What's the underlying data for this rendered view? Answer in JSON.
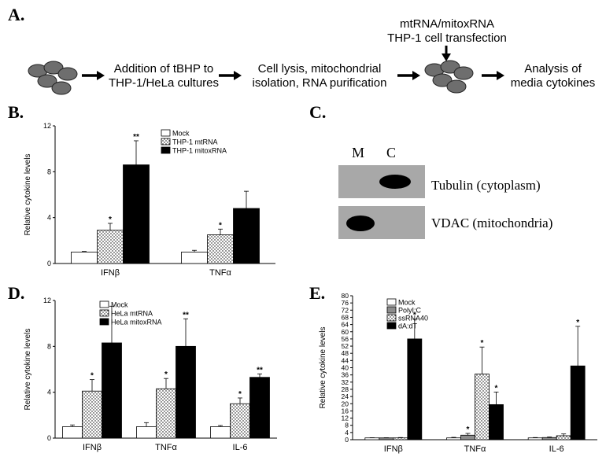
{
  "panels": {
    "a": "A.",
    "b": "B.",
    "c": "C.",
    "d": "D.",
    "e": "E."
  },
  "flow": {
    "step1_l1": "Addition of tBHP to",
    "step1_l2": "THP-1/HeLa cultures",
    "step2_l1": "Cell lysis, mitochondrial",
    "step2_l2": "isolation, RNA purification",
    "step3_l1": "mtRNA/mitoxRNA",
    "step3_l2": "THP-1 cell transfection",
    "step4_l1": "Analysis of",
    "step4_l2": "media cytokines",
    "colors": {
      "cell_fill": "#6e6e6e",
      "cell_stroke": "#222222"
    }
  },
  "blot": {
    "lane_m": "M",
    "lane_c": "C",
    "band1": "Tubulin (cytoplasm)",
    "band2": "VDAC (mitochondria)"
  },
  "chart_data": [
    {
      "id": "B",
      "type": "bar",
      "ylabel": "Relative cytokine levels",
      "ylim": [
        0,
        12
      ],
      "yticks": [
        0,
        4,
        8,
        12
      ],
      "categories": [
        "IFNβ",
        "TNFα"
      ],
      "legend_position": "top-center",
      "series": [
        {
          "name": "Mock",
          "pattern": "white",
          "values": [
            1.0,
            1.0
          ],
          "errors": [
            0.05,
            0.15
          ],
          "sig": [
            "",
            ""
          ]
        },
        {
          "name": "THP-1 mtRNA",
          "pattern": "dots",
          "values": [
            2.9,
            2.5
          ],
          "errors": [
            0.6,
            0.5
          ],
          "sig": [
            "*",
            "*"
          ]
        },
        {
          "name": "THP-1 mitoxRNA",
          "pattern": "black",
          "values": [
            8.6,
            4.8
          ],
          "errors": [
            2.1,
            1.5
          ],
          "sig": [
            "**",
            ""
          ]
        }
      ]
    },
    {
      "id": "D",
      "type": "bar",
      "ylabel": "Relative cytokine levels",
      "ylim": [
        0,
        12
      ],
      "yticks": [
        0,
        4,
        8,
        12
      ],
      "categories": [
        "IFNβ",
        "TNFα",
        "IL-6"
      ],
      "legend_position": "top-left",
      "series": [
        {
          "name": "Mock",
          "pattern": "white",
          "values": [
            1.0,
            1.0,
            1.0
          ],
          "errors": [
            0.15,
            0.35,
            0.1
          ],
          "sig": [
            "",
            "",
            ""
          ]
        },
        {
          "name": "HeLa mtRNA",
          "pattern": "dots",
          "values": [
            4.1,
            4.3,
            3.0
          ],
          "errors": [
            1.0,
            0.9,
            0.5
          ],
          "sig": [
            "*",
            "*",
            "*"
          ]
        },
        {
          "name": "HeLa mitoxRNA",
          "pattern": "black",
          "values": [
            8.3,
            8.0,
            5.3
          ],
          "errors": [
            3.2,
            2.4,
            0.3
          ],
          "sig": [
            "",
            "**",
            "**"
          ]
        }
      ]
    },
    {
      "id": "E",
      "type": "bar",
      "ylabel": "Relative cytokine levels",
      "ylim": [
        0,
        80
      ],
      "yticks": [
        0,
        4,
        8,
        12,
        16,
        20,
        24,
        28,
        32,
        36,
        40,
        44,
        48,
        52,
        56,
        60,
        64,
        68,
        72,
        76,
        80
      ],
      "categories": [
        "IFNβ",
        "TNFα",
        "IL-6"
      ],
      "legend_position": "top-left",
      "series": [
        {
          "name": "Mock",
          "pattern": "white",
          "values": [
            1.0,
            1.0,
            1.0
          ],
          "errors": [
            0.1,
            0.3,
            0.2
          ],
          "sig": [
            "",
            "",
            ""
          ]
        },
        {
          "name": "PolyI:C",
          "pattern": "gray",
          "values": [
            1.0,
            2.5,
            1.2
          ],
          "errors": [
            0.1,
            1.0,
            0.3
          ],
          "sig": [
            "",
            "*",
            ""
          ]
        },
        {
          "name": "ssRNA40",
          "pattern": "dots",
          "values": [
            1.0,
            36.5,
            2.2
          ],
          "errors": [
            0.2,
            15.0,
            1.0
          ],
          "sig": [
            "",
            "*",
            ""
          ]
        },
        {
          "name": "dA:dT",
          "pattern": "black",
          "values": [
            56.0,
            19.5,
            41.0
          ],
          "errors": [
            11.0,
            7.0,
            22.0
          ],
          "sig": [
            "*",
            "*",
            "*"
          ]
        }
      ]
    }
  ]
}
